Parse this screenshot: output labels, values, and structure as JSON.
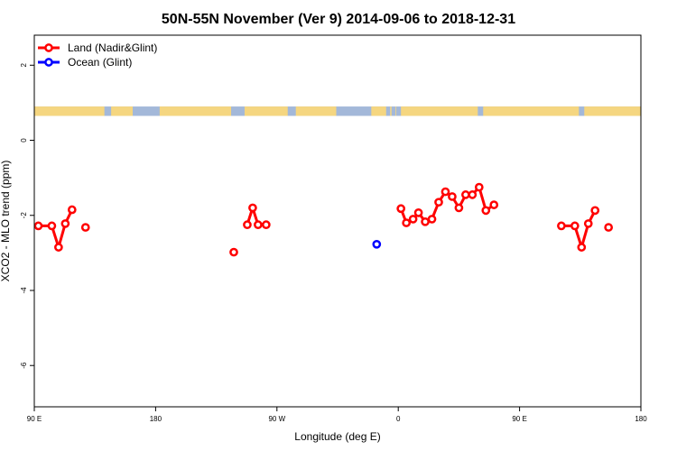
{
  "chart_data": {
    "type": "line",
    "title": "50N-55N November (Ver 9)   2014-09-06 to 2018-12-31",
    "xlabel": "Longitude (deg E)",
    "ylabel": "XCO2 - MLO trend (ppm)",
    "xlim": [
      90,
      540
    ],
    "ylim": [
      -7.1,
      2.8
    ],
    "x_ticks": [
      {
        "value": 90,
        "label": "90 E"
      },
      {
        "value": 180,
        "label": "180"
      },
      {
        "value": 270,
        "label": "90 W"
      },
      {
        "value": 360,
        "label": "0"
      },
      {
        "value": 450,
        "label": "90 E"
      },
      {
        "value": 540,
        "label": "180"
      }
    ],
    "y_ticks": [
      {
        "value": 2,
        "label": "2"
      },
      {
        "value": 0,
        "label": "0"
      },
      {
        "value": -2,
        "label": "-2"
      },
      {
        "value": -4,
        "label": "-4"
      },
      {
        "value": -6,
        "label": "-6"
      }
    ],
    "legend": {
      "placement": "top-left",
      "entries": [
        {
          "label": "Land (Nadir&Glint)",
          "color": "#ff0000"
        },
        {
          "label": "Ocean (Glint)",
          "color": "#0000ff"
        }
      ]
    },
    "land_band": {
      "y_range": [
        0.65,
        0.9
      ],
      "ocean_color": "#a3b8d9",
      "land_color": "#f5d680",
      "land_segments": [
        [
          90,
          142
        ],
        [
          147,
          163
        ],
        [
          183,
          236
        ],
        [
          246,
          278
        ],
        [
          284,
          314
        ],
        [
          340,
          351
        ],
        [
          354,
          355
        ],
        [
          358,
          358.5
        ],
        [
          362,
          419
        ],
        [
          423,
          494
        ],
        [
          498,
          540
        ]
      ]
    },
    "series": [
      {
        "name": "Land (Nadir&Glint)",
        "color": "#ff0000",
        "segments": [
          [
            [
              93,
              -2.28
            ],
            [
              103,
              -2.28
            ],
            [
              108,
              -2.85
            ],
            [
              113,
              -2.22
            ],
            [
              118,
              -1.85
            ]
          ],
          [
            [
              128,
              -2.32
            ]
          ],
          [
            [
              238,
              -2.98
            ]
          ],
          [
            [
              248,
              -2.25
            ],
            [
              252,
              -1.8
            ],
            [
              256,
              -2.25
            ],
            [
              262,
              -2.25
            ]
          ],
          [
            [
              362,
              -1.82
            ],
            [
              366,
              -2.2
            ],
            [
              371,
              -2.1
            ],
            [
              375,
              -1.93
            ],
            [
              380,
              -2.17
            ],
            [
              385,
              -2.1
            ],
            [
              390,
              -1.65
            ],
            [
              395,
              -1.37
            ],
            [
              400,
              -1.5
            ],
            [
              405,
              -1.8
            ],
            [
              410,
              -1.45
            ],
            [
              415,
              -1.45
            ],
            [
              420,
              -1.25
            ],
            [
              425,
              -1.87
            ],
            [
              431,
              -1.72
            ]
          ],
          [
            [
              481,
              -2.28
            ],
            [
              491,
              -2.28
            ],
            [
              496,
              -2.85
            ],
            [
              501,
              -2.22
            ],
            [
              506,
              -1.87
            ]
          ],
          [
            [
              516,
              -2.32
            ]
          ]
        ]
      },
      {
        "name": "Ocean (Glint)",
        "color": "#0000ff",
        "segments": [
          [
            [
              344,
              -2.77
            ]
          ]
        ]
      }
    ]
  }
}
